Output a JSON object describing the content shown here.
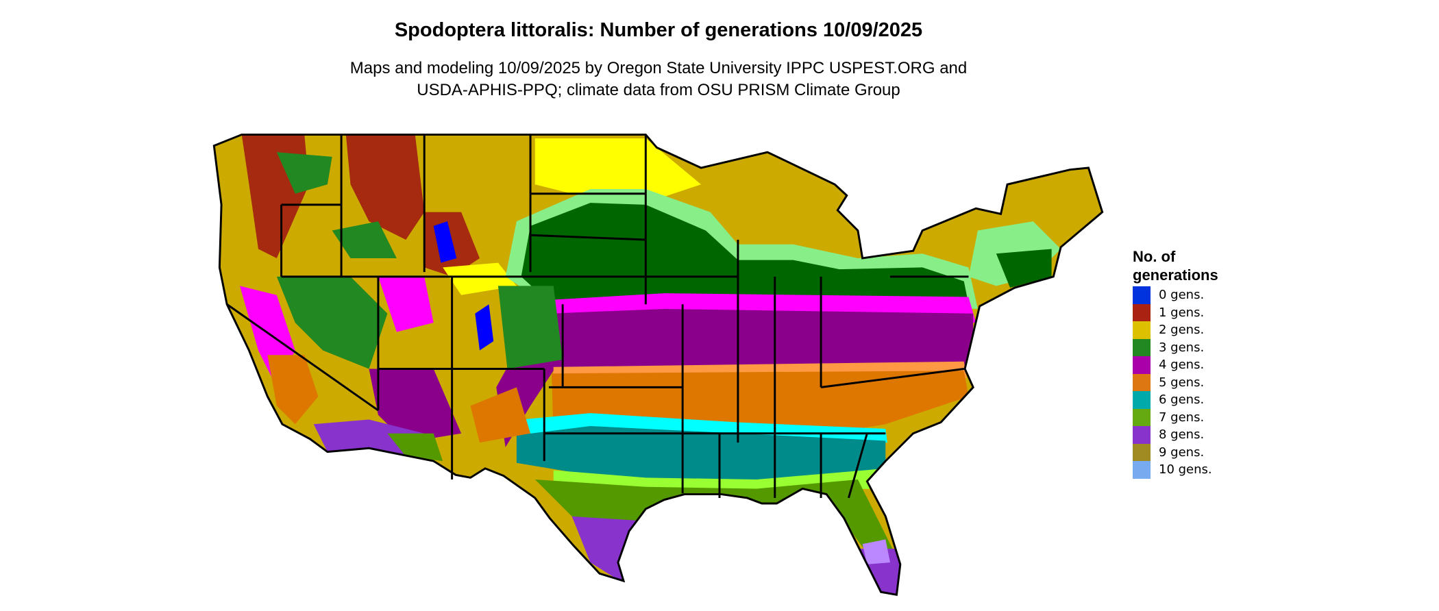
{
  "title": "Spodoptera littoralis: Number of generations 10/09/2025",
  "subtitle_lines": [
    "Maps and modeling 10/09/2025 by Oregon State University IPPC USPEST.ORG and",
    "USDA-APHIS-PPQ; climate data from OSU PRISM Climate Group"
  ],
  "legend": {
    "title_lines": [
      "No. of",
      "generations"
    ],
    "items": [
      {
        "label": "0 gens.",
        "color": "#0033dd"
      },
      {
        "label": "1 gens.",
        "color": "#aa2211"
      },
      {
        "label": "2 gens.",
        "color": "#ddc000"
      },
      {
        "label": "3 gens.",
        "color": "#228822"
      },
      {
        "label": "4 gens.",
        "color": "#aa00aa"
      },
      {
        "label": "5 gens.",
        "color": "#dd7711"
      },
      {
        "label": "6 gens.",
        "color": "#00aaaa"
      },
      {
        "label": "7 gens.",
        "color": "#66aa11"
      },
      {
        "label": "8 gens.",
        "color": "#8833cc"
      },
      {
        "label": "9 gens.",
        "color": "#a08a22"
      },
      {
        "label": "10 gens.",
        "color": "#77aaee"
      }
    ]
  },
  "map_colors": {
    "g1": "#a52a10",
    "g2": "#ccaa00",
    "g2light": "#ffff00",
    "g3": "#006600",
    "g3light": "#88ee88",
    "g4": "#8b008b",
    "g4light": "#ff00ff",
    "g5": "#dd7700",
    "g5light": "#ff9944",
    "g6": "#008b8b",
    "g6light": "#00ffff",
    "g7": "#559900",
    "g7light": "#99ff33",
    "g8": "#8833cc",
    "g8light": "#bb88ff",
    "g0": "#0000ff"
  }
}
